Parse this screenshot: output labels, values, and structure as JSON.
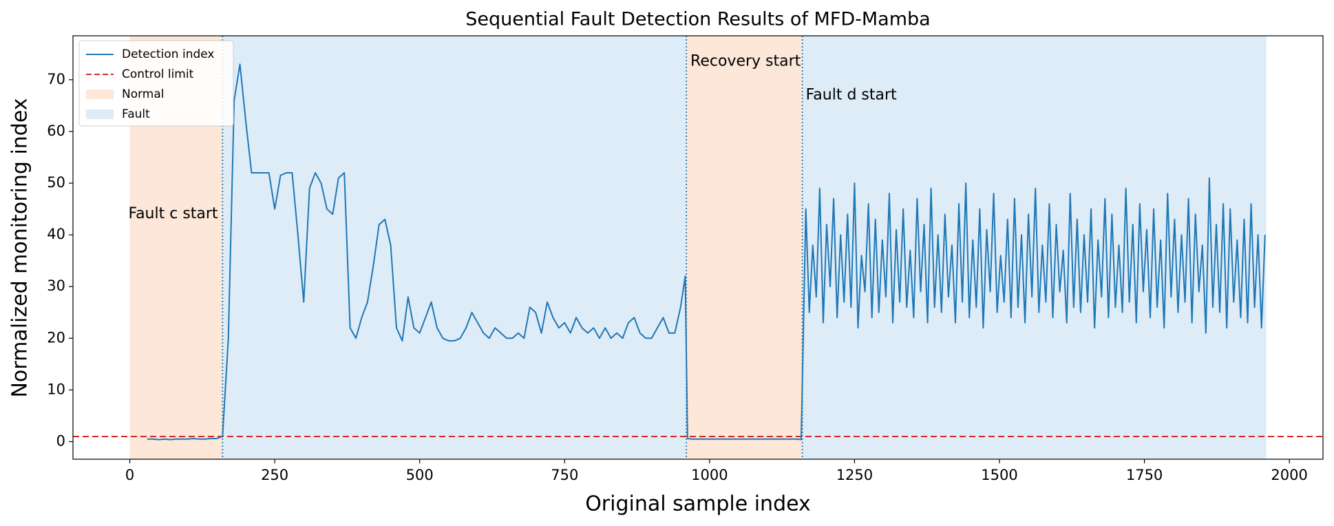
{
  "chart_data": {
    "type": "line",
    "title": "Sequential Fault Detection Results of MFD-Mamba",
    "xlabel": "Original sample index",
    "ylabel": "Normalized monitoring index",
    "xlim": [
      -98,
      2058
    ],
    "ylim": [
      -3.4,
      78.5
    ],
    "xticks": [
      0,
      250,
      500,
      750,
      1000,
      1250,
      1500,
      1750,
      2000
    ],
    "yticks": [
      0,
      10,
      20,
      30,
      40,
      50,
      60,
      70
    ],
    "legend": "upper left",
    "x": [
      30,
      40,
      50,
      60,
      70,
      80,
      90,
      100,
      110,
      120,
      130,
      140,
      150,
      160,
      170,
      180,
      190,
      200,
      210,
      220,
      230,
      240,
      250,
      260,
      270,
      280,
      290,
      300,
      310,
      320,
      330,
      340,
      350,
      360,
      370,
      380,
      390,
      400,
      410,
      420,
      430,
      440,
      450,
      460,
      470,
      480,
      490,
      500,
      510,
      520,
      530,
      540,
      550,
      560,
      570,
      580,
      590,
      600,
      610,
      620,
      630,
      640,
      650,
      660,
      670,
      680,
      690,
      700,
      710,
      720,
      730,
      740,
      750,
      760,
      770,
      780,
      790,
      800,
      810,
      820,
      830,
      840,
      850,
      860,
      870,
      880,
      890,
      900,
      910,
      920,
      930,
      940,
      950,
      958,
      962,
      970,
      980,
      990,
      1000,
      1010,
      1020,
      1030,
      1040,
      1050,
      1060,
      1070,
      1080,
      1090,
      1100,
      1110,
      1120,
      1130,
      1140,
      1150,
      1158,
      1163,
      1166,
      1172,
      1178,
      1184,
      1190,
      1196,
      1202,
      1208,
      1214,
      1220,
      1226,
      1232,
      1238,
      1244,
      1250,
      1256,
      1262,
      1268,
      1274,
      1280,
      1286,
      1292,
      1298,
      1304,
      1310,
      1316,
      1322,
      1328,
      1334,
      1340,
      1346,
      1352,
      1358,
      1364,
      1370,
      1376,
      1382,
      1388,
      1394,
      1400,
      1406,
      1412,
      1418,
      1424,
      1430,
      1436,
      1442,
      1448,
      1454,
      1460,
      1466,
      1472,
      1478,
      1484,
      1490,
      1496,
      1502,
      1508,
      1514,
      1520,
      1526,
      1532,
      1538,
      1544,
      1550,
      1556,
      1562,
      1568,
      1574,
      1580,
      1586,
      1592,
      1598,
      1604,
      1610,
      1616,
      1622,
      1628,
      1634,
      1640,
      1646,
      1652,
      1658,
      1664,
      1670,
      1676,
      1682,
      1688,
      1694,
      1700,
      1706,
      1712,
      1718,
      1724,
      1730,
      1736,
      1742,
      1748,
      1754,
      1760,
      1766,
      1772,
      1778,
      1784,
      1790,
      1796,
      1802,
      1808,
      1814,
      1820,
      1826,
      1832,
      1838,
      1844,
      1850,
      1856,
      1862,
      1868,
      1874,
      1880,
      1886,
      1892,
      1898,
      1904,
      1910,
      1916,
      1922,
      1928,
      1934,
      1940,
      1946,
      1952,
      1958
    ],
    "series": [
      {
        "name": "Detection index",
        "color": "#1f77b4",
        "values": [
          0.5,
          0.5,
          0.4,
          0.5,
          0.4,
          0.5,
          0.5,
          0.5,
          0.6,
          0.5,
          0.5,
          0.6,
          0.6,
          1.0,
          20,
          66,
          73,
          62,
          52,
          52,
          52,
          52,
          45,
          51.5,
          52,
          52,
          40,
          27,
          49,
          52,
          50,
          45,
          44,
          51,
          52,
          22,
          20,
          24,
          27,
          34,
          42,
          43,
          38,
          22,
          19.5,
          28,
          22,
          21,
          24,
          27,
          22,
          20,
          19.5,
          19.5,
          20,
          22,
          25,
          23,
          21,
          20,
          22,
          21,
          20,
          20,
          21,
          20,
          26,
          25,
          21,
          27,
          24,
          22,
          23,
          21,
          24,
          22,
          21,
          22,
          20,
          22,
          20,
          21,
          20,
          23,
          24,
          21,
          20,
          20,
          22,
          24,
          21,
          21,
          26,
          32,
          0.6,
          0.5,
          0.5,
          0.5,
          0.5,
          0.5,
          0.5,
          0.5,
          0.5,
          0.5,
          0.5,
          0.5,
          0.5,
          0.5,
          0.5,
          0.5,
          0.5,
          0.5,
          0.5,
          0.5,
          0.4,
          28,
          45,
          25,
          38,
          28,
          49,
          23,
          42,
          30,
          47,
          24,
          40,
          27,
          44,
          26,
          50,
          22,
          36,
          29,
          46,
          24,
          43,
          25,
          39,
          28,
          48,
          23,
          41,
          27,
          45,
          26,
          37,
          24,
          47,
          29,
          42,
          23,
          49,
          26,
          40,
          25,
          44,
          28,
          38,
          23,
          46,
          27,
          50,
          24,
          39,
          26,
          45,
          22,
          41,
          29,
          48,
          25,
          36,
          27,
          43,
          24,
          47,
          26,
          40,
          23,
          44,
          28,
          49,
          25,
          38,
          27,
          46,
          24,
          42,
          29,
          37,
          23,
          48,
          26,
          43,
          25,
          40,
          27,
          45,
          22,
          39,
          28,
          47,
          24,
          44,
          26,
          38,
          25,
          49,
          27,
          42,
          23,
          46,
          29,
          41,
          24,
          45,
          26,
          39,
          22,
          48,
          28,
          43,
          25,
          40,
          27,
          47,
          23,
          44,
          29,
          38,
          21,
          51,
          26,
          42,
          25,
          46,
          22,
          45,
          27,
          39,
          24,
          43,
          23,
          46,
          26,
          40,
          22,
          40
        ]
      }
    ],
    "control_limit": {
      "name": "Control limit",
      "value": 1,
      "color": "#d62728"
    },
    "regions": [
      {
        "name": "Normal",
        "start": 0,
        "end": 160,
        "color": "#fce7d8"
      },
      {
        "name": "Fault",
        "start": 160,
        "end": 960,
        "color": "#deecf8"
      },
      {
        "name": "Normal",
        "start": 960,
        "end": 1160,
        "color": "#fce7d8"
      },
      {
        "name": "Fault",
        "start": 1160,
        "end": 1960,
        "color": "#deecf8"
      }
    ],
    "vlines": [
      160,
      960,
      1160
    ],
    "annotations": [
      {
        "text": "Fault c start",
        "x": 152,
        "y": 44,
        "ha": "end"
      },
      {
        "text": "Recovery start",
        "x": 967,
        "y": 73.5,
        "ha": "start"
      },
      {
        "text": "Fault d start",
        "x": 1166,
        "y": 67,
        "ha": "start"
      }
    ]
  }
}
